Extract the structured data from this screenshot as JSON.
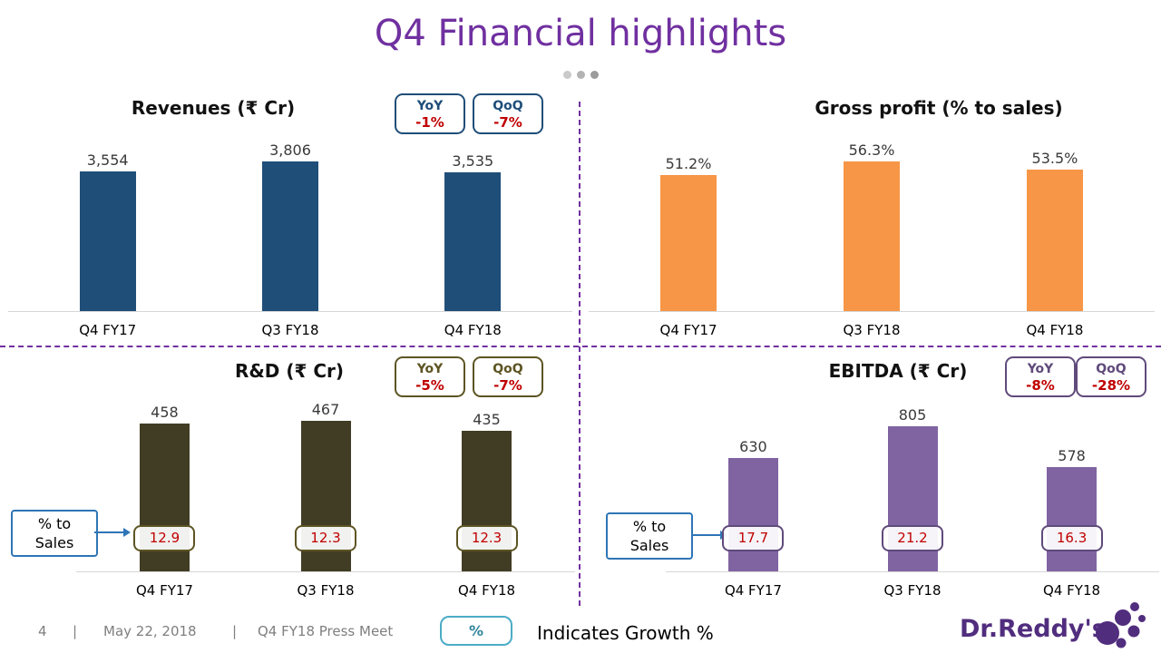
{
  "slide": {
    "title": "Q4 Financial highlights"
  },
  "chart_data": [
    {
      "type": "bar",
      "title": "Revenues (₹ Cr)",
      "categories": [
        "Q4 FY17",
        "Q3 FY18",
        "Q4 FY18"
      ],
      "values": [
        3554,
        3806,
        3535
      ],
      "value_labels": [
        "3,554",
        "3,806",
        "3,535"
      ],
      "bar_color": "#1F4E79",
      "theme_color": "#1F4E79",
      "ylim": [
        0,
        4450
      ],
      "badges": [
        {
          "label": "YoY",
          "value": "-1%"
        },
        {
          "label": "QoQ",
          "value": "-7%"
        }
      ]
    },
    {
      "type": "bar",
      "title": "Gross profit (% to sales)",
      "categories": [
        "Q4 FY17",
        "Q3 FY18",
        "Q4 FY18"
      ],
      "values": [
        51.2,
        56.3,
        53.5
      ],
      "value_labels": [
        "51.2%",
        "56.3%",
        "53.5%"
      ],
      "bar_color": "#F79646",
      "theme_color": "#F79646",
      "ylim": [
        0,
        66
      ],
      "badges": []
    },
    {
      "type": "bar",
      "title": "R&D (₹ Cr)",
      "categories": [
        "Q4 FY17",
        "Q3 FY18",
        "Q4 FY18"
      ],
      "values": [
        458,
        467,
        435
      ],
      "value_labels": [
        "458",
        "467",
        "435"
      ],
      "pct_to_sales": [
        "12.9",
        "12.3",
        "12.3"
      ],
      "bar_color": "#413D24",
      "theme_color": "#5D5423",
      "ylim": [
        0,
        520
      ],
      "badges": [
        {
          "label": "YoY",
          "value": "-5%"
        },
        {
          "label": "QoQ",
          "value": "-7%"
        }
      ]
    },
    {
      "type": "bar",
      "title": "EBITDA (₹ Cr)",
      "categories": [
        "Q4 FY17",
        "Q3 FY18",
        "Q4 FY18"
      ],
      "values": [
        630,
        805,
        578
      ],
      "value_labels": [
        "630",
        "805",
        "578"
      ],
      "pct_to_sales": [
        "17.7",
        "21.2",
        "16.3"
      ],
      "bar_color": "#8064A2",
      "theme_color": "#604A7B",
      "ylim": [
        0,
        930
      ],
      "badges": [
        {
          "label": "YoY",
          "value": "-8%"
        },
        {
          "label": "QoQ",
          "value": "-28%"
        }
      ]
    }
  ],
  "callout": {
    "line1": "% to",
    "line2": "Sales"
  },
  "footer": {
    "page": "4",
    "sep": "|",
    "date": "May 22, 2018",
    "deck": "Q4 FY18 Press Meet",
    "growth_badge": "%",
    "growth_note": "Indicates Growth %",
    "brand": "Dr.Reddy's"
  },
  "colors": {
    "title_purple": "#7030A0",
    "divider_purple": "#7030A0",
    "badge_value_red": "#C00000",
    "callout_border_blue": "#2E75B6",
    "growth_badge_border": "#4BACC6",
    "growth_badge_text": "#31859C",
    "footer_gray": "#7F7F7F",
    "brand_purple": "#512D7E"
  }
}
